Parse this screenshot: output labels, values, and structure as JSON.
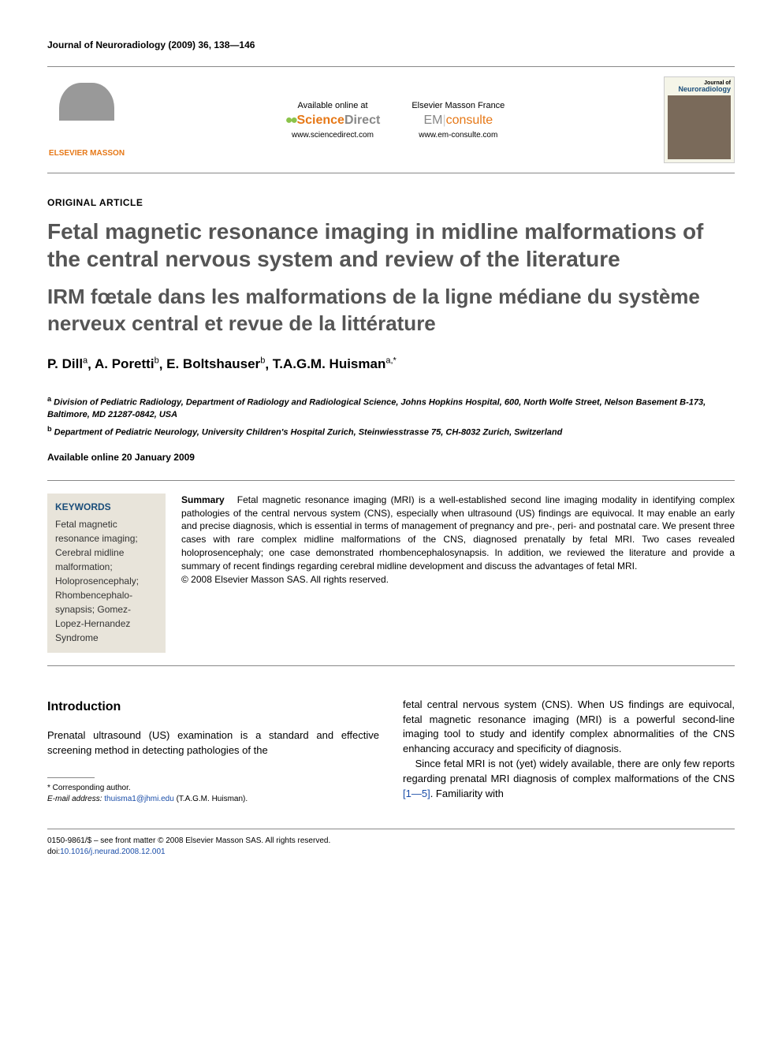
{
  "journal_ref": "Journal of Neuroradiology (2009) 36, 138—146",
  "header": {
    "publisher_name": "ELSEVIER MASSON",
    "available_label": "Available online at",
    "sd_brand_left": "Science",
    "sd_brand_right": "Direct",
    "sd_url": "www.sciencedirect.com",
    "em_label": "Elsevier Masson France",
    "em_brand_left": "EM",
    "em_brand_right": "consulte",
    "em_url": "www.em-consulte.com",
    "cover_pre": "Journal of",
    "cover_main": "Neuroradiology"
  },
  "article_type": "ORIGINAL ARTICLE",
  "title_en": "Fetal magnetic resonance imaging in midline malformations of the central nervous system and review of the literature",
  "title_fr": "IRM fœtale dans les malformations de la ligne médiane du système nerveux central et revue de la littérature",
  "authors": [
    {
      "name": "P. Dill",
      "aff": "a"
    },
    {
      "name": "A. Poretti",
      "aff": "b"
    },
    {
      "name": "E. Boltshauser",
      "aff": "b"
    },
    {
      "name": "T.A.G.M. Huisman",
      "aff": "a,*"
    }
  ],
  "affiliations": {
    "a": "Division of Pediatric Radiology, Department of Radiology and Radiological Science, Johns Hopkins Hospital, 600, North Wolfe Street, Nelson Basement B-173, Baltimore, MD 21287-0842, USA",
    "b": "Department of Pediatric Neurology, University Children's Hospital Zurich, Steinwiesstrasse 75, CH-8032 Zurich, Switzerland"
  },
  "online_date": "Available online 20 January 2009",
  "keywords_heading": "KEYWORDS",
  "keywords": "Fetal magnetic resonance imaging; Cerebral midline malformation; Holoprosencephaly; Rhombencephalo-synapsis; Gomez-Lopez-Hernandez Syndrome",
  "summary_label": "Summary",
  "summary_text": "Fetal magnetic resonance imaging (MRI) is a well-established second line imaging modality in identifying complex pathologies of the central nervous system (CNS), especially when ultrasound (US) findings are equivocal. It may enable an early and precise diagnosis, which is essential in terms of management of pregnancy and pre-, peri- and postnatal care. We present three cases with rare complex midline malformations of the CNS, diagnosed prenatally by fetal MRI. Two cases revealed holoprosencephaly; one case demonstrated rhombencephalosynapsis. In addition, we reviewed the literature and provide a summary of recent findings regarding cerebral midline development and discuss the advantages of fetal MRI.",
  "copyright_line": "© 2008 Elsevier Masson SAS. All rights reserved.",
  "intro_heading": "Introduction",
  "intro_p1": "Prenatal ultrasound (US) examination is a standard and effective screening method in detecting pathologies of the",
  "intro_p2a": "fetal central nervous system (CNS). When US findings are equivocal, fetal magnetic resonance imaging (MRI) is a powerful second-line imaging tool to study and identify complex abnormalities of the CNS enhancing accuracy and specificity of diagnosis.",
  "intro_p2b_pre": "Since fetal MRI is not (yet) widely available, there are only few reports regarding prenatal MRI diagnosis of complex malformations of the CNS ",
  "intro_p2b_cite": "[1—5]",
  "intro_p2b_post": ". Familiarity with",
  "corr_label": "* Corresponding author.",
  "email_label": "E-mail address:",
  "email": "thuisma1@jhmi.edu",
  "email_suffix": "(T.A.G.M. Huisman).",
  "footer_line1": "0150-9861/$ – see front matter © 2008 Elsevier Masson SAS. All rights reserved.",
  "doi_label": "doi:",
  "doi": "10.1016/j.neurad.2008.12.001"
}
